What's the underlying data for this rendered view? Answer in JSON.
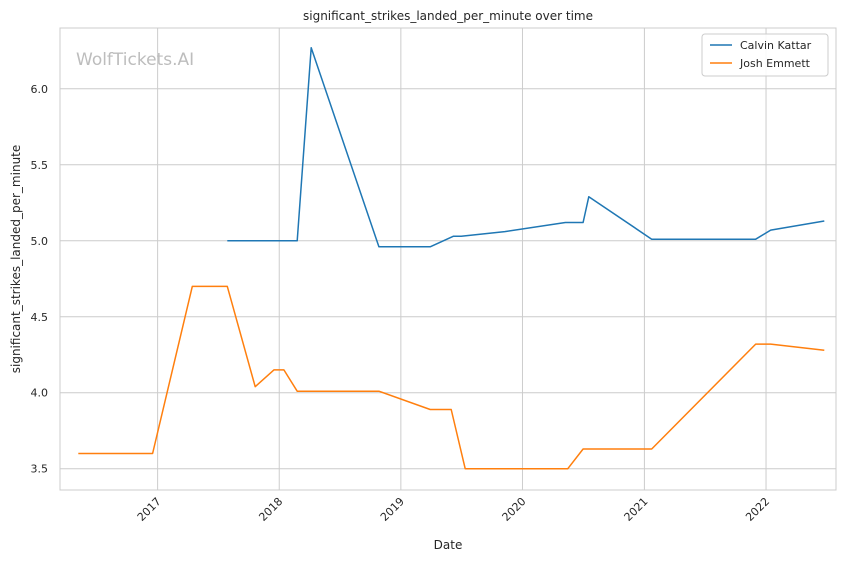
{
  "chart_data": {
    "type": "line",
    "title": "significant_strikes_landed_per_minute over time",
    "xlabel": "Date",
    "ylabel": "significant_strikes_landed_per_minute",
    "watermark": "WolfTickets.AI",
    "x_ticks": [
      "2017",
      "2018",
      "2019",
      "2020",
      "2021",
      "2022"
    ],
    "y_ticks": [
      "3.5",
      "4.0",
      "4.5",
      "5.0",
      "5.5",
      "6.0"
    ],
    "xlim": [
      "2016-03-14",
      "2022-07-30"
    ],
    "ylim": [
      3.36,
      6.4
    ],
    "grid": true,
    "legend_position": "top-right",
    "series": [
      {
        "name": "Calvin Kattar",
        "color": "#1f77b4",
        "points": [
          [
            "2017-07-29",
            5.0
          ],
          [
            "2018-02-24",
            5.0
          ],
          [
            "2018-04-07",
            6.27
          ],
          [
            "2018-10-27",
            4.96
          ],
          [
            "2019-03-30",
            4.96
          ],
          [
            "2019-06-08",
            5.03
          ],
          [
            "2019-07-01",
            5.03
          ],
          [
            "2019-11-09",
            5.06
          ],
          [
            "2020-05-09",
            5.12
          ],
          [
            "2020-07-01",
            5.12
          ],
          [
            "2020-07-18",
            5.29
          ],
          [
            "2021-01-23",
            5.01
          ],
          [
            "2021-12-01",
            5.01
          ],
          [
            "2022-01-15",
            5.07
          ],
          [
            "2022-06-25",
            5.13
          ]
        ]
      },
      {
        "name": "Josh Emmett",
        "color": "#ff7f0e",
        "points": [
          [
            "2016-05-08",
            3.6
          ],
          [
            "2016-12-17",
            3.6
          ],
          [
            "2017-04-15",
            4.7
          ],
          [
            "2017-07-29",
            4.7
          ],
          [
            "2017-10-21",
            4.04
          ],
          [
            "2017-12-16",
            4.15
          ],
          [
            "2018-01-15",
            4.15
          ],
          [
            "2018-02-24",
            4.01
          ],
          [
            "2018-10-27",
            4.01
          ],
          [
            "2019-03-30",
            3.89
          ],
          [
            "2019-06-01",
            3.89
          ],
          [
            "2019-07-13",
            3.5
          ],
          [
            "2020-05-16",
            3.5
          ],
          [
            "2020-07-01",
            3.63
          ],
          [
            "2021-01-23",
            3.63
          ],
          [
            "2021-12-01",
            4.32
          ],
          [
            "2022-01-15",
            4.32
          ],
          [
            "2022-06-25",
            4.28
          ]
        ]
      }
    ]
  }
}
